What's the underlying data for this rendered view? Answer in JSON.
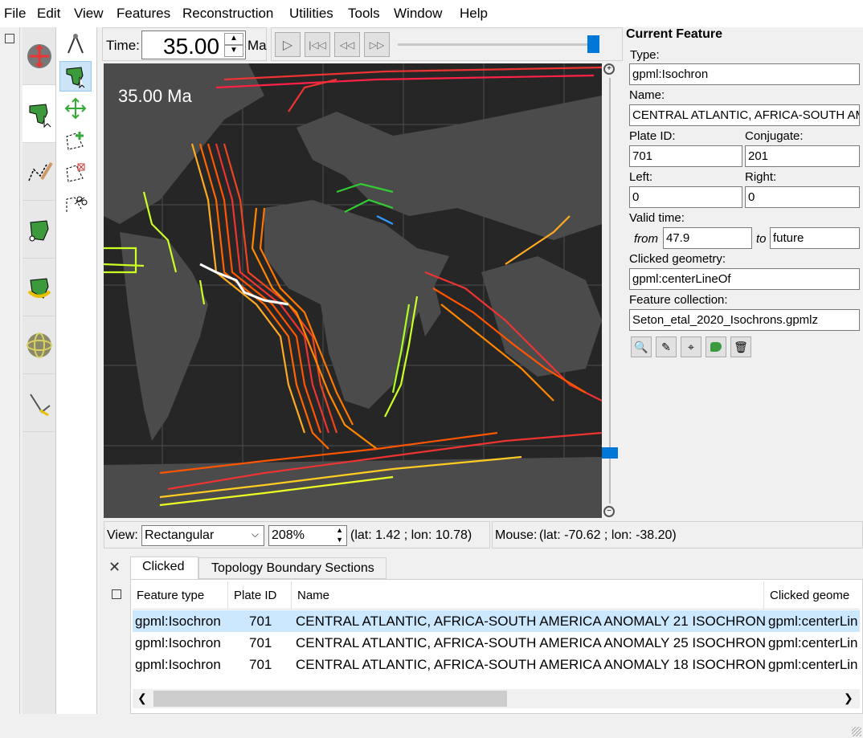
{
  "menu": [
    "File",
    "Edit",
    "View",
    "Features",
    "Reconstruction",
    "Utilities",
    "Tools",
    "Window",
    "Help"
  ],
  "time": {
    "label": "Time:",
    "value": "35.00",
    "unit": "Ma"
  },
  "map": {
    "overlay_time": "35.00 Ma"
  },
  "view": {
    "label": "View:",
    "projection": "Rectangular",
    "zoom": "208%",
    "center_coords": "(lat: 1.42 ; lon: 10.78)",
    "mouse_label": "Mouse:",
    "mouse_coords": "(lat: -70.62 ; lon: -38.20)"
  },
  "current_feature": {
    "title": "Current Feature",
    "type_label": "Type:",
    "type": "gpml:Isochron",
    "name_label": "Name:",
    "name": "CENTRAL ATLANTIC, AFRICA-SOUTH AMERICA",
    "plate_id_label": "Plate ID:",
    "plate_id": "701",
    "conjugate_label": "Conjugate:",
    "conjugate": "201",
    "left_label": "Left:",
    "left": "0",
    "right_label": "Right:",
    "right": "0",
    "valid_time_label": "Valid time:",
    "from_label": "from",
    "from": "47.9",
    "to_label": "to",
    "to": "future",
    "clicked_geometry_label": "Clicked geometry:",
    "clicked_geometry": "gpml:centerLineOf",
    "feature_collection_label": "Feature collection:",
    "feature_collection": "Seton_etal_2020_Isochrons.gpmlz"
  },
  "bottom": {
    "tabs": [
      "Clicked",
      "Topology Boundary Sections"
    ],
    "columns": [
      "Feature type",
      "Plate ID",
      "Name",
      "Clicked geome"
    ],
    "rows": [
      [
        "gpml:Isochron",
        "701",
        "CENTRAL ATLANTIC, AFRICA-SOUTH AMERICA ANOMALY 21 ISOCHRON",
        "gpml:centerLin"
      ],
      [
        "gpml:Isochron",
        "701",
        "CENTRAL ATLANTIC, AFRICA-SOUTH AMERICA ANOMALY 25 ISOCHRON",
        "gpml:centerLin"
      ],
      [
        "gpml:Isochron",
        "701",
        "CENTRAL ATLANTIC, AFRICA-SOUTH AMERICA ANOMALY 18 ISOCHRON",
        "gpml:centerLin"
      ]
    ]
  },
  "colors": {
    "accent": "#0078d7",
    "selection": "#cce8ff",
    "map_bg": "#262626",
    "land": "#4a4a4a"
  }
}
